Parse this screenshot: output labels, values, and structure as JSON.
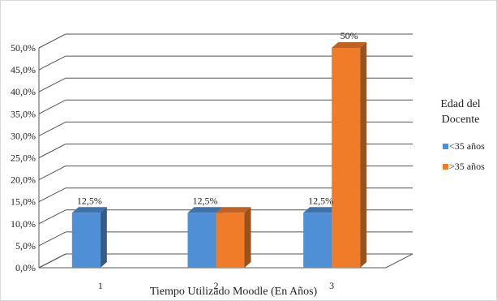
{
  "chart_data": {
    "type": "bar",
    "categories": [
      "1",
      "2",
      "3"
    ],
    "series": [
      {
        "name": "<35 años",
        "values": [
          12.5,
          12.5,
          12.5
        ],
        "labels": [
          "12,5%",
          "12,5%",
          "12,5%"
        ],
        "color": "#4e8fd6"
      },
      {
        "name": ">35 años",
        "values": [
          null,
          12.5,
          50
        ],
        "labels": [
          "",
          "",
          "50%"
        ],
        "color": "#f07c2a"
      }
    ],
    "y_ticks": [
      "0,0%",
      "5,0%",
      "10,0%",
      "15,0%",
      "20,0%",
      "25,0%",
      "30,0%",
      "35,0%",
      "40,0%",
      "45,0%",
      "50,0%"
    ],
    "ylim": [
      0,
      50
    ],
    "xlabel": "Tiempo Utilizado Moodle (En Años)",
    "legend": {
      "title_lines": [
        "Edad del",
        "Docente"
      ],
      "position": "right"
    },
    "grid": true,
    "three_d": true
  }
}
